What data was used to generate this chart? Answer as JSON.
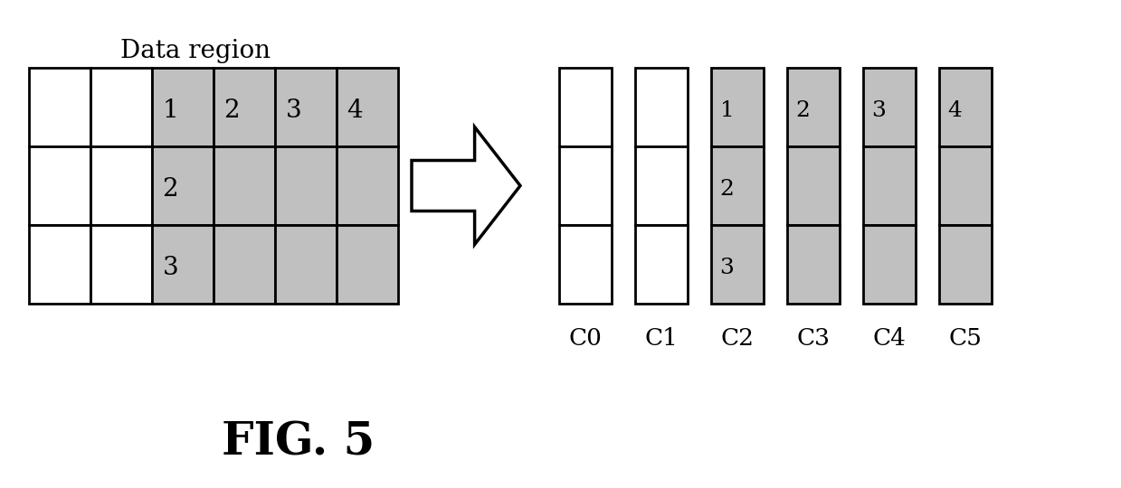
{
  "title": "Data region",
  "fig_caption": "FIG. 5",
  "background_color": "#ffffff",
  "gray_color": "#c0c0c0",
  "white_color": "#ffffff",
  "line_color": "#000000",
  "columns_right": [
    "C0",
    "C1",
    "C2",
    "C3",
    "C4",
    "C5"
  ],
  "left_grid_label_positions": [
    [
      0,
      2,
      "1"
    ],
    [
      0,
      3,
      "2"
    ],
    [
      0,
      4,
      "3"
    ],
    [
      0,
      5,
      "4"
    ],
    [
      1,
      2,
      "2"
    ],
    [
      2,
      2,
      "3"
    ]
  ],
  "right_col_texts": {
    "0": [
      "",
      "",
      ""
    ],
    "1": [
      "",
      "",
      ""
    ],
    "2": [
      "1",
      "2",
      "3"
    ],
    "3": [
      "2",
      "",
      ""
    ],
    "4": [
      "3",
      "",
      ""
    ],
    "5": [
      "4",
      "",
      ""
    ]
  }
}
